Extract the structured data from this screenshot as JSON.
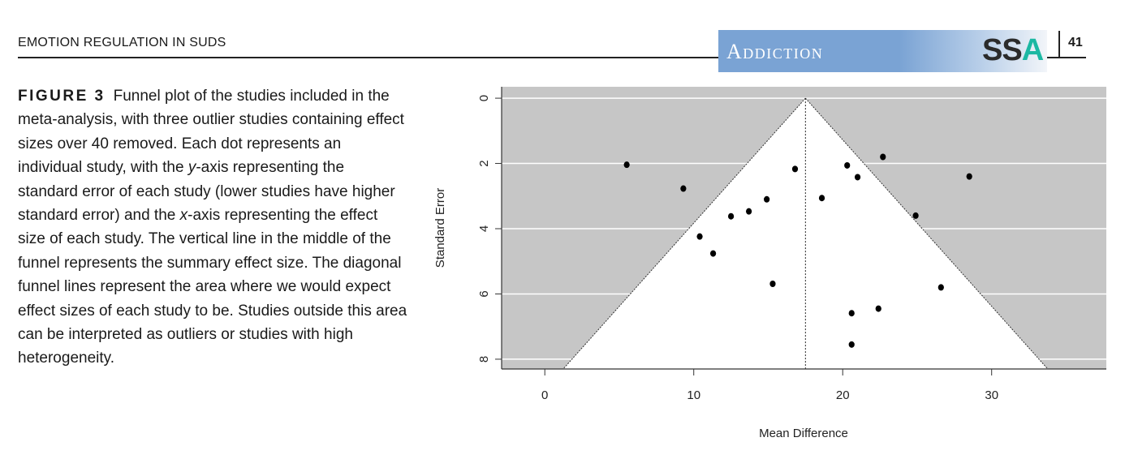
{
  "header": {
    "running_head": "EMOTION REGULATION IN SUDS",
    "journal_banner": "Addiction",
    "publisher_logo_s": "SS",
    "publisher_logo_a": "A",
    "page_number": "41"
  },
  "caption": {
    "label": "FIGURE 3",
    "part1": "Funnel plot of the studies included in the meta-analysis, with three outlier studies containing effect sizes over 40 removed. Each dot represents an individual study, with the ",
    "italic_y": "y",
    "part2": "-axis representing the standard error of each study (lower studies have higher standard error) and the ",
    "italic_x": "x",
    "part3": "-axis representing the effect size of each study. The vertical line in the middle of the funnel represents the summary effect size. The diagonal funnel lines represent the area where we would expect effect sizes of each study to be. Studies outside this area can be interpreted as outliers or studies with high heterogeneity."
  },
  "chart_data": {
    "type": "scatter",
    "subtype": "funnel plot",
    "xlabel": "Mean Difference",
    "ylabel": "Standard Error",
    "xlim": [
      -2.9,
      37.7
    ],
    "ylim": [
      8.3,
      -0.35
    ],
    "y_reversed": true,
    "x_ticks": [
      0,
      10,
      20,
      30
    ],
    "y_ticks": [
      0,
      2,
      4,
      6,
      8
    ],
    "grid": "horizontal white lines at y ticks",
    "background_color": "#c6c6c6",
    "funnel_fill": "#ffffff",
    "summary_effect": 17.5,
    "funnel_multiplier": 1.96,
    "points": [
      {
        "x": 5.5,
        "y": 2.04
      },
      {
        "x": 9.3,
        "y": 2.77
      },
      {
        "x": 16.8,
        "y": 2.17
      },
      {
        "x": 20.3,
        "y": 2.06
      },
      {
        "x": 22.7,
        "y": 1.8
      },
      {
        "x": 21.0,
        "y": 2.42
      },
      {
        "x": 28.5,
        "y": 2.4
      },
      {
        "x": 14.9,
        "y": 3.1
      },
      {
        "x": 18.6,
        "y": 3.06
      },
      {
        "x": 13.7,
        "y": 3.47
      },
      {
        "x": 12.5,
        "y": 3.62
      },
      {
        "x": 24.9,
        "y": 3.6
      },
      {
        "x": 10.4,
        "y": 4.24
      },
      {
        "x": 11.3,
        "y": 4.76
      },
      {
        "x": 15.3,
        "y": 5.69
      },
      {
        "x": 26.6,
        "y": 5.8
      },
      {
        "x": 22.4,
        "y": 6.45
      },
      {
        "x": 20.6,
        "y": 6.59
      },
      {
        "x": 20.6,
        "y": 7.55
      }
    ]
  }
}
